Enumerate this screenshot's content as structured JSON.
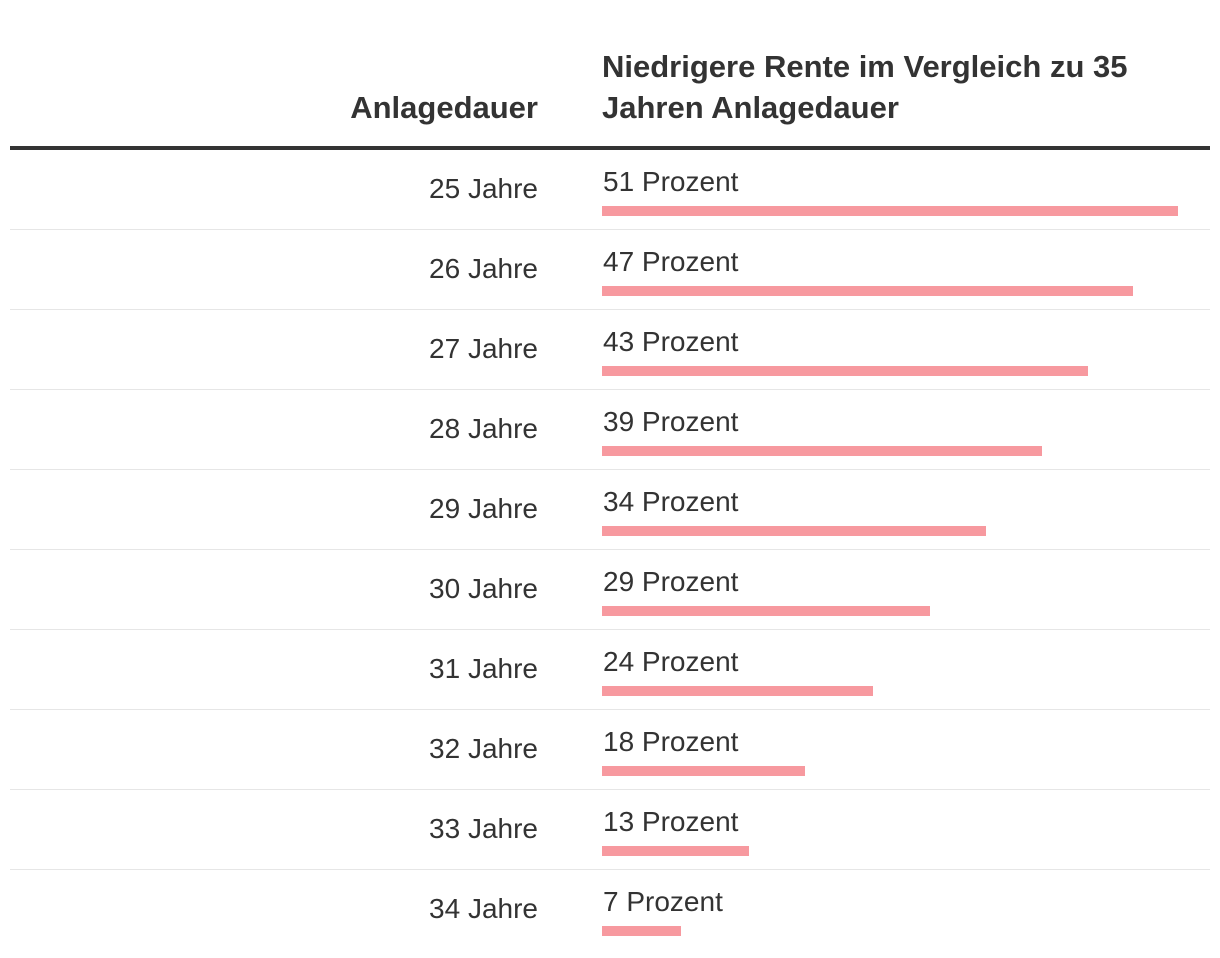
{
  "header": {
    "col1": "Anlagedauer",
    "col2": "Niedrigere Rente im Vergleich zu 35 Jahren Anlagedauer"
  },
  "colors": {
    "bar": "#f7999f",
    "text": "#333333",
    "rule": "#e6e6e6"
  },
  "chart_data": {
    "type": "table",
    "title": "",
    "columns": [
      "Anlagedauer",
      "Niedrigere Rente im Vergleich zu 35 Jahren Anlagedauer"
    ],
    "value_unit": "Prozent",
    "bar_max": 51,
    "rows": [
      {
        "category": "25 Jahre",
        "value": 51,
        "label": "51 Prozent"
      },
      {
        "category": "26 Jahre",
        "value": 47,
        "label": "47 Prozent"
      },
      {
        "category": "27 Jahre",
        "value": 43,
        "label": "43 Prozent"
      },
      {
        "category": "28 Jahre",
        "value": 39,
        "label": "39 Prozent"
      },
      {
        "category": "29 Jahre",
        "value": 34,
        "label": "34 Prozent"
      },
      {
        "category": "30 Jahre",
        "value": 29,
        "label": "29 Prozent"
      },
      {
        "category": "31 Jahre",
        "value": 24,
        "label": "24 Prozent"
      },
      {
        "category": "32 Jahre",
        "value": 18,
        "label": "18 Prozent"
      },
      {
        "category": "33 Jahre",
        "value": 13,
        "label": "13 Prozent"
      },
      {
        "category": "34 Jahre",
        "value": 7,
        "label": "7 Prozent"
      }
    ]
  }
}
